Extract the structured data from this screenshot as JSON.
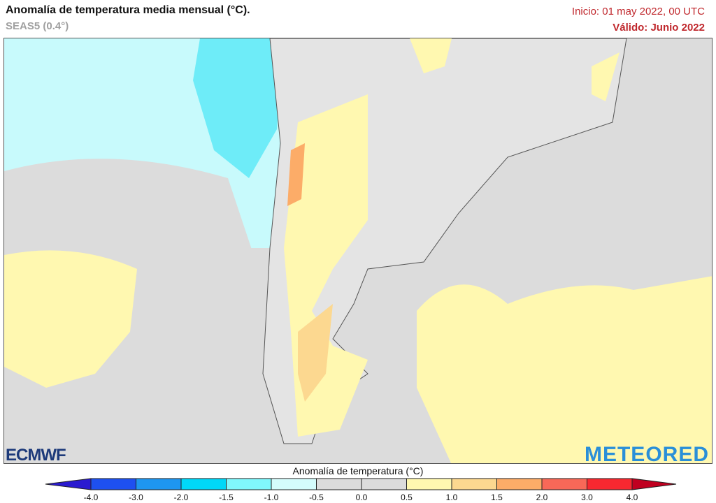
{
  "header": {
    "title": "Anomalía de temperatura media mensual (°C).",
    "model": "SEAS5 (0.4°)",
    "init": "Inicio: 01 may 2022, 00 UTC",
    "valid": "Válido: Junio 2022"
  },
  "logos": {
    "left": "ECMWF",
    "right": "METEORED"
  },
  "colorbar": {
    "title": "Anomalía de temperatura (°C)",
    "ticks": [
      "-4.0",
      "-3.0",
      "-2.0",
      "-1.5",
      "-1.0",
      "-0.5",
      "0.0",
      "0.5",
      "1.0",
      "1.5",
      "2.0",
      "3.0",
      "4.0"
    ],
    "colors": [
      "#1e50f0",
      "#1e96f0",
      "#00d8f8",
      "#80f8fc",
      "#d4fcfc",
      "#dcdcdc",
      "#dcdcdc",
      "#fff8b0",
      "#fcd890",
      "#fcac68",
      "#f86858",
      "#f82830"
    ],
    "under_color": "#2a1ad0",
    "over_color": "#c00020"
  },
  "map": {
    "region": "South America (southern cone)",
    "ocean_anomaly_color": "#c8fafc",
    "land_color": "#dcdcdc",
    "warm_color": "#fff8b0"
  }
}
